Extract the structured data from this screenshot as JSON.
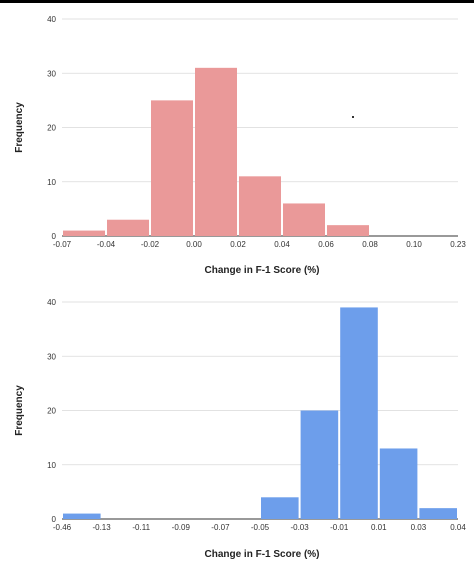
{
  "chart_data": [
    {
      "type": "bar",
      "xlabel": "Change in F-1 Score (%)",
      "ylabel": "Frequency",
      "ylim": [
        0,
        40
      ],
      "yticks": [
        "0",
        "10",
        "20",
        "30",
        "40"
      ],
      "categories": [
        "-0.07",
        "-0.04",
        "-0.02",
        "0.00",
        "0.02",
        "0.04",
        "0.06",
        "0.08",
        "0.10",
        "0.23"
      ],
      "values": [
        1,
        3,
        25,
        31,
        11,
        6,
        2,
        0,
        0,
        1
      ],
      "color": "#ea9999",
      "grid": true
    },
    {
      "type": "bar",
      "xlabel": "Change in F-1 Score (%)",
      "ylabel": "Frequency",
      "ylim": [
        0,
        40
      ],
      "yticks": [
        "0",
        "10",
        "20",
        "30",
        "40"
      ],
      "categories": [
        "-0.46",
        "-0.13",
        "-0.11",
        "-0.09",
        "-0.07",
        "-0.05",
        "-0.03",
        "-0.01",
        "0.01",
        "0.03",
        "0.04"
      ],
      "values": [
        1,
        0,
        0,
        0,
        0,
        4,
        20,
        39,
        13,
        2,
        1
      ],
      "color": "#6d9eeb",
      "grid": true
    }
  ]
}
